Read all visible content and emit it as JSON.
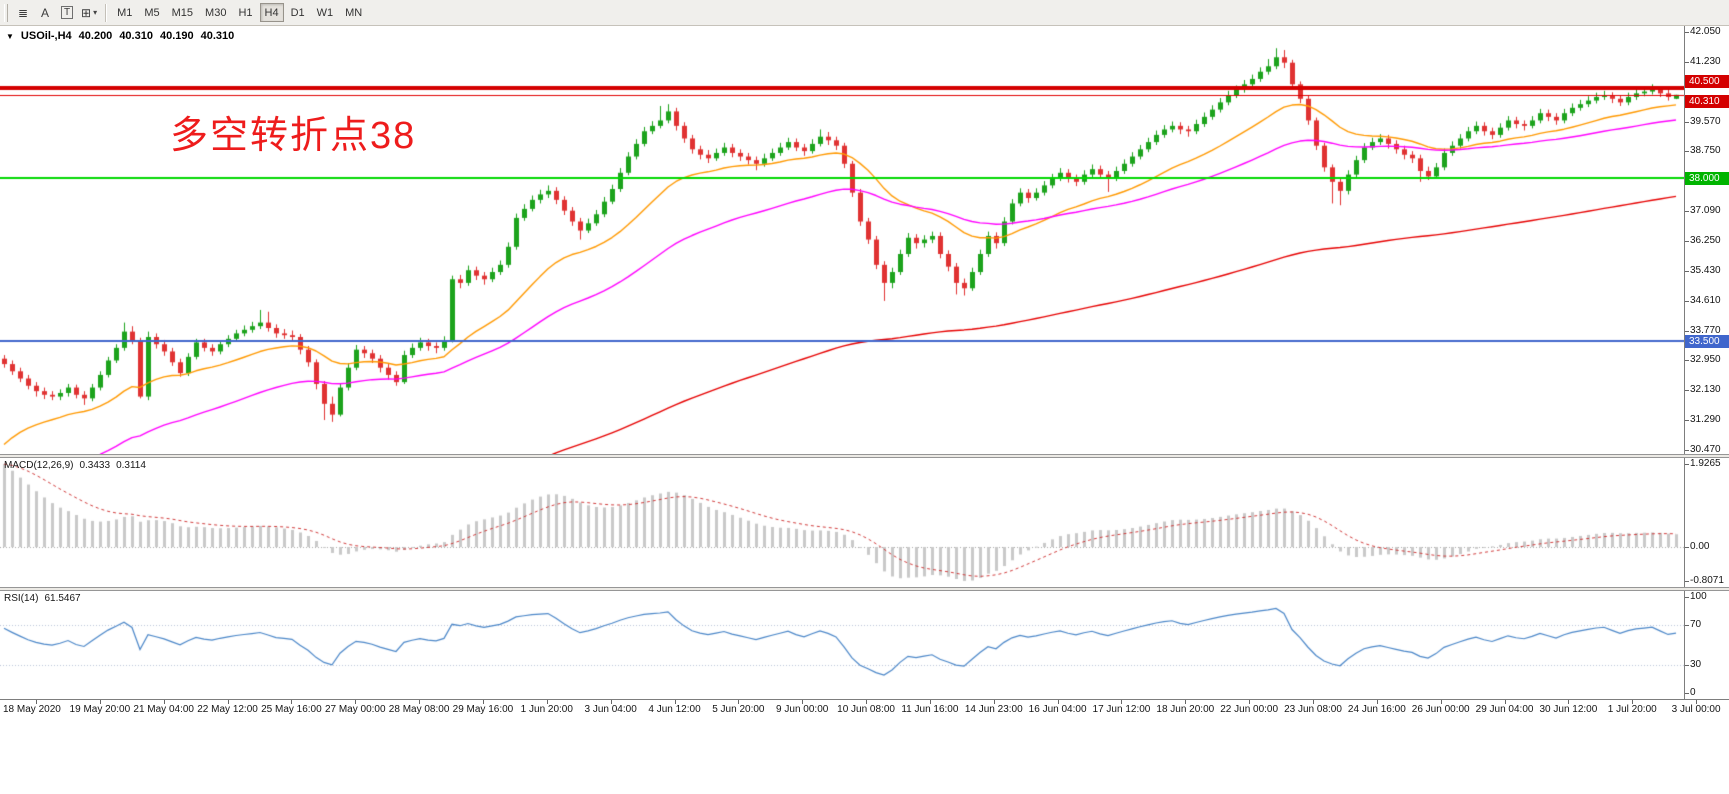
{
  "toolbar": {
    "tools": [
      {
        "name": "objects-list",
        "glyph": "≣",
        "boxed": false,
        "caret": false
      },
      {
        "name": "arrow-tool",
        "glyph": "A",
        "boxed": false,
        "caret": false
      },
      {
        "name": "text-tool",
        "glyph": "T",
        "boxed": true,
        "caret": false
      },
      {
        "name": "crosshair-tool",
        "glyph": "⊞",
        "boxed": false,
        "caret": true
      }
    ],
    "caret_glyph": "▾",
    "timeframes": [
      "M1",
      "M5",
      "M15",
      "M30",
      "H1",
      "H4",
      "D1",
      "W1",
      "MN"
    ],
    "active_timeframe": "H4"
  },
  "chart": {
    "title": {
      "menu_glyph": "▼",
      "symbol": "USOil-,H4",
      "open": "40.200",
      "high": "40.310",
      "low": "40.190",
      "close": "40.310"
    },
    "annotation": {
      "text": "多空转折点38",
      "color": "#ee1c1c"
    },
    "macd_header": {
      "label": "MACD(12,26,9)",
      "main_value": "0.3433",
      "signal_value": "0.3114"
    },
    "rsi_header": {
      "label": "RSI(14)",
      "value": "61.5467"
    }
  },
  "chart_data": {
    "type": "candlestick",
    "symbol": "USOil-",
    "timeframe": "H4",
    "ylim": [
      30.47,
      42.05
    ],
    "colors": {
      "up": "#1ca31c",
      "down": "#e03232",
      "macd_hist": "#c9c9c9",
      "macd_signal": "#d03a3a",
      "rsi_line": "#4a86c8",
      "rsi_levels": "#b9c2d6"
    },
    "levels": [
      {
        "price": 40.5,
        "color": "#d40000",
        "width": 4
      },
      {
        "price": 40.31,
        "color": "#e00000",
        "width": 1
      },
      {
        "price": 38.0,
        "color": "#00d800",
        "width": 2
      },
      {
        "price": 33.5,
        "color": "#4066cc",
        "width": 2
      }
    ],
    "price_axis": {
      "ticks": [
        "42.050",
        "41.230",
        "39.570",
        "38.750",
        "37.090",
        "36.250",
        "35.430",
        "34.610",
        "33.770",
        "32.950",
        "32.130",
        "31.290",
        "30.470"
      ],
      "badges": [
        {
          "label": "40.500",
          "price": 40.5,
          "color": "#d40000",
          "dy": -13
        },
        {
          "label": "40.310",
          "price": 40.31,
          "color": "#d40000",
          "dy": 0
        },
        {
          "label": "38.000",
          "price": 38.0,
          "color": "#00b400",
          "dy": -6
        },
        {
          "label": "33.500",
          "price": 33.5,
          "color": "#4066cc",
          "dy": -6
        }
      ]
    },
    "moving_averages": [
      {
        "color": "#ff9900",
        "period": 21,
        "seed": 30.4
      },
      {
        "color": "#ff00ff",
        "period": 48,
        "seed": 29.0
      },
      {
        "color": "#e60000",
        "period": 160,
        "seed": 25.5
      }
    ],
    "macd": {
      "fast": 12,
      "slow": 26,
      "signal": 9,
      "fast_seed": 32.8,
      "slow_seed": 30.87,
      "axis_labels": {
        "max": "1.9265",
        "zero": "0.00",
        "min": "-0.8071"
      }
    },
    "rsi": {
      "period": 14,
      "seed_gain": 0.16,
      "seed_loss": 0.08,
      "levels": [
        70,
        30
      ],
      "axis_labels": [
        100,
        70,
        30,
        0
      ]
    },
    "time_axis": {
      "labels": [
        "18 May 2020",
        "19 May 20:00",
        "21 May 04:00",
        "22 May 12:00",
        "25 May 16:00",
        "27 May 00:00",
        "28 May 08:00",
        "29 May 16:00",
        "1 Jun 20:00",
        "3 Jun 04:00",
        "4 Jun 12:00",
        "5 Jun 20:00",
        "9 Jun 00:00",
        "10 Jun 08:00",
        "11 Jun 16:00",
        "14 Jun 23:00",
        "16 Jun 04:00",
        "17 Jun 12:00",
        "18 Jun 20:00",
        "22 Jun 00:00",
        "23 Jun 08:00",
        "24 Jun 16:00",
        "26 Jun 00:00",
        "29 Jun 04:00",
        "30 Jun 12:00",
        "1 Jul 20:00",
        "3 Jul 00:00"
      ]
    },
    "candles": [
      [
        33,
        33.1,
        32.75,
        32.85
      ],
      [
        32.85,
        32.95,
        32.55,
        32.65
      ],
      [
        32.65,
        32.75,
        32.35,
        32.45
      ],
      [
        32.45,
        32.55,
        32.15,
        32.25
      ],
      [
        32.25,
        32.35,
        31.95,
        32.1
      ],
      [
        32.1,
        32.2,
        31.88,
        32
      ],
      [
        32,
        32.1,
        31.85,
        31.95
      ],
      [
        31.95,
        32.15,
        31.85,
        32.05
      ],
      [
        32.05,
        32.3,
        31.95,
        32.2
      ],
      [
        32.2,
        32.28,
        31.9,
        32
      ],
      [
        32,
        32.1,
        31.72,
        31.9
      ],
      [
        31.9,
        32.3,
        31.82,
        32.2
      ],
      [
        32.2,
        32.65,
        32.12,
        32.55
      ],
      [
        32.55,
        33.05,
        32.48,
        32.95
      ],
      [
        32.95,
        33.4,
        32.88,
        33.3
      ],
      [
        33.3,
        34,
        33.22,
        33.75
      ],
      [
        33.75,
        33.9,
        33.4,
        33.5
      ],
      [
        33.5,
        33.58,
        31.9,
        31.95
      ],
      [
        31.95,
        33.75,
        31.85,
        33.6
      ],
      [
        33.6,
        33.7,
        33.28,
        33.4
      ],
      [
        33.4,
        33.52,
        33.08,
        33.2
      ],
      [
        33.2,
        33.3,
        32.8,
        32.9
      ],
      [
        32.9,
        33,
        32.5,
        32.6
      ],
      [
        32.6,
        33.15,
        32.52,
        33.05
      ],
      [
        33.05,
        33.55,
        32.98,
        33.45
      ],
      [
        33.45,
        33.55,
        33.2,
        33.3
      ],
      [
        33.3,
        33.4,
        33.08,
        33.2
      ],
      [
        33.2,
        33.5,
        33.12,
        33.4
      ],
      [
        33.4,
        33.65,
        33.32,
        33.55
      ],
      [
        33.55,
        33.8,
        33.48,
        33.7
      ],
      [
        33.7,
        33.92,
        33.62,
        33.8
      ],
      [
        33.8,
        34.02,
        33.72,
        33.9
      ],
      [
        33.9,
        34.35,
        33.82,
        34
      ],
      [
        34,
        34.3,
        33.75,
        33.85
      ],
      [
        33.85,
        33.95,
        33.58,
        33.7
      ],
      [
        33.7,
        33.82,
        33.55,
        33.65
      ],
      [
        33.65,
        33.78,
        33.5,
        33.6
      ],
      [
        33.6,
        33.68,
        33.12,
        33.25
      ],
      [
        33.25,
        33.35,
        32.78,
        32.9
      ],
      [
        32.9,
        32.98,
        32.15,
        32.3
      ],
      [
        32.3,
        32.38,
        31.3,
        31.75
      ],
      [
        31.75,
        31.95,
        31.25,
        31.45
      ],
      [
        31.45,
        32.32,
        31.4,
        32.2
      ],
      [
        32.2,
        32.88,
        32.12,
        32.75
      ],
      [
        32.75,
        33.38,
        32.68,
        33.25
      ],
      [
        33.25,
        33.35,
        33.02,
        33.15
      ],
      [
        33.15,
        33.25,
        32.88,
        33
      ],
      [
        33,
        33.1,
        32.62,
        32.75
      ],
      [
        32.75,
        32.85,
        32.42,
        32.55
      ],
      [
        32.55,
        32.65,
        32.25,
        32.35
      ],
      [
        32.35,
        33.22,
        32.3,
        33.1
      ],
      [
        33.1,
        33.42,
        33.02,
        33.3
      ],
      [
        33.3,
        33.58,
        33.22,
        33.45
      ],
      [
        33.45,
        33.55,
        33.22,
        33.35
      ],
      [
        33.35,
        33.45,
        33.15,
        33.3
      ],
      [
        33.3,
        33.62,
        33.22,
        33.5
      ],
      [
        33.5,
        35.3,
        33.45,
        35.2
      ],
      [
        35.2,
        35.32,
        34.95,
        35.1
      ],
      [
        35.1,
        35.58,
        35.02,
        35.45
      ],
      [
        35.45,
        35.55,
        35.18,
        35.3
      ],
      [
        35.3,
        35.4,
        35.05,
        35.2
      ],
      [
        35.2,
        35.52,
        35.12,
        35.4
      ],
      [
        35.4,
        35.72,
        35.32,
        35.6
      ],
      [
        35.6,
        36.22,
        35.52,
        36.1
      ],
      [
        36.1,
        37.02,
        36.02,
        36.9
      ],
      [
        36.9,
        37.28,
        36.82,
        37.15
      ],
      [
        37.15,
        37.52,
        37.08,
        37.4
      ],
      [
        37.4,
        37.68,
        37.3,
        37.55
      ],
      [
        37.55,
        37.8,
        37.45,
        37.65
      ],
      [
        37.65,
        37.75,
        37.28,
        37.4
      ],
      [
        37.4,
        37.5,
        36.98,
        37.1
      ],
      [
        37.1,
        37.2,
        36.68,
        36.8
      ],
      [
        36.8,
        36.9,
        36.3,
        36.55
      ],
      [
        36.55,
        36.88,
        36.48,
        36.75
      ],
      [
        36.75,
        37.12,
        36.68,
        37
      ],
      [
        37,
        37.48,
        36.92,
        37.35
      ],
      [
        37.35,
        37.82,
        37.28,
        37.7
      ],
      [
        37.7,
        38.28,
        37.62,
        38.15
      ],
      [
        38.15,
        38.72,
        38.08,
        38.6
      ],
      [
        38.6,
        39.08,
        38.52,
        38.95
      ],
      [
        38.95,
        39.42,
        38.88,
        39.3
      ],
      [
        39.3,
        39.58,
        39.22,
        39.45
      ],
      [
        39.45,
        40,
        39.38,
        39.6
      ],
      [
        39.6,
        40.05,
        39.52,
        39.85
      ],
      [
        39.85,
        39.95,
        39.32,
        39.45
      ],
      [
        39.45,
        39.55,
        38.98,
        39.1
      ],
      [
        39.1,
        39.2,
        38.68,
        38.8
      ],
      [
        38.8,
        38.9,
        38.52,
        38.65
      ],
      [
        38.65,
        38.78,
        38.42,
        38.55
      ],
      [
        38.55,
        38.82,
        38.48,
        38.7
      ],
      [
        38.7,
        38.98,
        38.62,
        38.85
      ],
      [
        38.85,
        38.95,
        38.58,
        38.7
      ],
      [
        38.7,
        38.8,
        38.48,
        38.6
      ],
      [
        38.6,
        38.7,
        38.38,
        38.5
      ],
      [
        38.5,
        38.6,
        38.22,
        38.4
      ],
      [
        38.4,
        38.68,
        38.32,
        38.55
      ],
      [
        38.55,
        38.82,
        38.48,
        38.7
      ],
      [
        38.7,
        38.98,
        38.62,
        38.85
      ],
      [
        38.85,
        39.12,
        38.78,
        39
      ],
      [
        39,
        39.1,
        38.75,
        38.85
      ],
      [
        38.85,
        38.95,
        38.62,
        38.75
      ],
      [
        38.75,
        39.08,
        38.68,
        38.95
      ],
      [
        38.95,
        39.35,
        38.88,
        39.15
      ],
      [
        39.15,
        39.28,
        38.92,
        39.05
      ],
      [
        39.05,
        39.15,
        38.78,
        38.9
      ],
      [
        38.9,
        38.98,
        38.28,
        38.4
      ],
      [
        38.4,
        38.48,
        37.48,
        37.6
      ],
      [
        37.6,
        37.7,
        36.68,
        36.8
      ],
      [
        36.8,
        36.9,
        36.18,
        36.3
      ],
      [
        36.3,
        36.4,
        35.48,
        35.6
      ],
      [
        35.6,
        35.7,
        34.6,
        35.1
      ],
      [
        35.1,
        35.52,
        34.95,
        35.4
      ],
      [
        35.4,
        36.02,
        35.32,
        35.9
      ],
      [
        35.9,
        36.48,
        35.82,
        36.35
      ],
      [
        36.35,
        36.45,
        36.05,
        36.2
      ],
      [
        36.2,
        36.42,
        36.08,
        36.3
      ],
      [
        36.3,
        36.52,
        36.2,
        36.4
      ],
      [
        36.4,
        36.5,
        35.78,
        35.9
      ],
      [
        35.9,
        36,
        35.42,
        35.55
      ],
      [
        35.55,
        35.65,
        34.78,
        35.1
      ],
      [
        35.1,
        35.22,
        34.75,
        34.95
      ],
      [
        34.95,
        35.52,
        34.88,
        35.4
      ],
      [
        35.4,
        36.02,
        35.32,
        35.9
      ],
      [
        35.9,
        36.52,
        35.82,
        36.4
      ],
      [
        36.4,
        36.5,
        36.05,
        36.2
      ],
      [
        36.2,
        36.92,
        36.12,
        36.8
      ],
      [
        36.8,
        37.42,
        36.72,
        37.3
      ],
      [
        37.3,
        37.72,
        37.22,
        37.6
      ],
      [
        37.6,
        37.7,
        37.32,
        37.45
      ],
      [
        37.45,
        37.72,
        37.38,
        37.6
      ],
      [
        37.6,
        37.92,
        37.52,
        37.8
      ],
      [
        37.8,
        38.12,
        37.72,
        38
      ],
      [
        38,
        38.28,
        37.92,
        38.15
      ],
      [
        38.15,
        38.25,
        37.88,
        38
      ],
      [
        38,
        38.1,
        37.78,
        37.9
      ],
      [
        37.9,
        38.22,
        37.82,
        38.1
      ],
      [
        38.1,
        38.38,
        38.02,
        38.25
      ],
      [
        38.25,
        38.35,
        37.98,
        38.1
      ],
      [
        38.1,
        38.2,
        37.62,
        38
      ],
      [
        38,
        38.32,
        37.92,
        38.2
      ],
      [
        38.2,
        38.52,
        38.12,
        38.4
      ],
      [
        38.4,
        38.72,
        38.32,
        38.6
      ],
      [
        38.6,
        38.92,
        38.52,
        38.8
      ],
      [
        38.8,
        39.12,
        38.72,
        39
      ],
      [
        39,
        39.32,
        38.92,
        39.2
      ],
      [
        39.2,
        39.47,
        39.12,
        39.35
      ],
      [
        39.35,
        39.57,
        39.27,
        39.45
      ],
      [
        39.45,
        39.55,
        39.22,
        39.35
      ],
      [
        39.35,
        39.45,
        39.15,
        39.3
      ],
      [
        39.3,
        39.62,
        39.22,
        39.5
      ],
      [
        39.5,
        39.82,
        39.42,
        39.7
      ],
      [
        39.7,
        40.02,
        39.62,
        39.9
      ],
      [
        39.9,
        40.22,
        39.82,
        40.1
      ],
      [
        40.1,
        40.42,
        40.02,
        40.3
      ],
      [
        40.3,
        40.57,
        40.22,
        40.45
      ],
      [
        40.45,
        40.72,
        40.37,
        40.6
      ],
      [
        40.6,
        40.87,
        40.52,
        40.75
      ],
      [
        40.75,
        41.07,
        40.67,
        40.95
      ],
      [
        40.95,
        41.3,
        40.87,
        41.1
      ],
      [
        41.1,
        41.6,
        41.02,
        41.35
      ],
      [
        41.35,
        41.55,
        41.05,
        41.2
      ],
      [
        41.2,
        41.28,
        40.48,
        40.6
      ],
      [
        40.6,
        40.68,
        40.08,
        40.2
      ],
      [
        40.2,
        40.28,
        39.48,
        39.6
      ],
      [
        39.6,
        39.68,
        38.78,
        38.9
      ],
      [
        38.9,
        38.98,
        38.18,
        38.3
      ],
      [
        38.3,
        38.38,
        37.3,
        37.9
      ],
      [
        37.9,
        38,
        37.25,
        37.65
      ],
      [
        37.65,
        38.22,
        37.55,
        38.1
      ],
      [
        38.1,
        38.62,
        38.02,
        38.5
      ],
      [
        38.5,
        38.97,
        38.42,
        38.85
      ],
      [
        38.85,
        39.12,
        38.78,
        39
      ],
      [
        39,
        39.22,
        38.92,
        39.1
      ],
      [
        39.1,
        39.2,
        38.82,
        38.95
      ],
      [
        38.95,
        39.05,
        38.68,
        38.8
      ],
      [
        38.8,
        38.9,
        38.52,
        38.65
      ],
      [
        38.65,
        38.75,
        38.42,
        38.55
      ],
      [
        38.55,
        38.65,
        37.9,
        38.2
      ],
      [
        38.2,
        38.32,
        37.95,
        38.05
      ],
      [
        38.05,
        38.42,
        37.98,
        38.3
      ],
      [
        38.3,
        38.82,
        38.22,
        38.7
      ],
      [
        38.7,
        39.02,
        38.62,
        38.9
      ],
      [
        38.9,
        39.22,
        38.82,
        39.1
      ],
      [
        39.1,
        39.42,
        39.02,
        39.3
      ],
      [
        39.3,
        39.57,
        39.22,
        39.45
      ],
      [
        39.45,
        39.55,
        39.18,
        39.3
      ],
      [
        39.3,
        39.4,
        39.08,
        39.2
      ],
      [
        39.2,
        39.52,
        39.12,
        39.4
      ],
      [
        39.4,
        39.72,
        39.32,
        39.6
      ],
      [
        39.6,
        39.7,
        39.38,
        39.5
      ],
      [
        39.5,
        39.6,
        39.32,
        39.45
      ],
      [
        39.45,
        39.72,
        39.38,
        39.6
      ],
      [
        39.6,
        39.92,
        39.52,
        39.8
      ],
      [
        39.8,
        39.9,
        39.58,
        39.7
      ],
      [
        39.7,
        39.8,
        39.48,
        39.6
      ],
      [
        39.6,
        39.92,
        39.52,
        39.8
      ],
      [
        39.8,
        40.07,
        39.72,
        39.95
      ],
      [
        39.95,
        40.17,
        39.87,
        40.05
      ],
      [
        40.05,
        40.27,
        39.97,
        40.15
      ],
      [
        40.15,
        40.37,
        40.07,
        40.25
      ],
      [
        40.25,
        40.42,
        40.17,
        40.3
      ],
      [
        40.3,
        40.38,
        40.08,
        40.2
      ],
      [
        40.2,
        40.3,
        40,
        40.1
      ],
      [
        40.1,
        40.37,
        40.02,
        40.25
      ],
      [
        40.25,
        40.47,
        40.17,
        40.35
      ],
      [
        40.35,
        40.52,
        40.27,
        40.4
      ],
      [
        40.4,
        40.6,
        40.32,
        40.45
      ],
      [
        40.45,
        40.55,
        40.25,
        40.35
      ],
      [
        40.35,
        40.45,
        40.15,
        40.25
      ],
      [
        40.2,
        40.31,
        40.19,
        40.31
      ]
    ]
  }
}
